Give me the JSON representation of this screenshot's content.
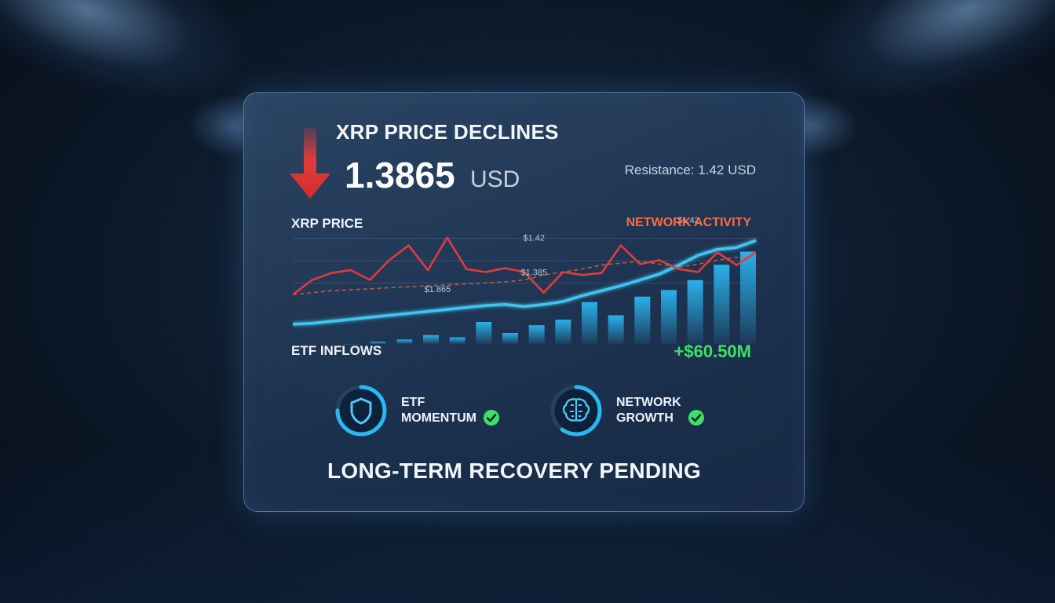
{
  "header": {
    "title": "XRP PRICE DECLINES",
    "price": "1.3865",
    "unit": "USD",
    "resistance": "Resistance: 1.42 USD"
  },
  "labels": {
    "xrp_price": "XRP PRICE",
    "network_activity": "NETWORK ACTIVITY",
    "etf_inflows": "ETF INFLOWS",
    "inflow_value": "+$60.50M"
  },
  "annotations": [
    {
      "text": "$1.42",
      "x": 12.5,
      "y": 1.42
    },
    {
      "text": "$1.385",
      "x": 12.5,
      "y": 1.385
    },
    {
      "text": "$1.865",
      "x": 7.5,
      "y": 1.368
    },
    {
      "text": "$1.42",
      "x": 20.5,
      "y": 1.438
    }
  ],
  "metrics": [
    {
      "line1": "ETF",
      "line2": "MOMENTUM",
      "icon": "shield-icon",
      "ring_fill": 0.75
    },
    {
      "line1": "NETWORK",
      "line2": "GROWTH",
      "icon": "brain-icon",
      "ring_fill": 0.6
    }
  ],
  "footer": "LONG-TERM RECOVERY PENDING",
  "colors": {
    "price_line": "#e23b3b",
    "network_line": "#3fc5f0",
    "bars": "#2ab0ea",
    "down_arrow": "#e23b3b",
    "positive": "#3de06a",
    "network_label": "#ff6b3d"
  },
  "chart_data": {
    "type": "line",
    "x": [
      0,
      1,
      2,
      3,
      4,
      5,
      6,
      7,
      8,
      9,
      10,
      11,
      12,
      13,
      14,
      15,
      16,
      17,
      18,
      19,
      20,
      21,
      22,
      23,
      24
    ],
    "ylim": [
      1.32,
      1.45
    ],
    "series": [
      {
        "name": "XRP PRICE",
        "values": [
          1.37,
          1.385,
          1.392,
          1.395,
          1.385,
          1.405,
          1.42,
          1.395,
          1.428,
          1.396,
          1.393,
          1.397,
          1.393,
          1.372,
          1.393,
          1.39,
          1.392,
          1.42,
          1.401,
          1.405,
          1.396,
          1.393,
          1.413,
          1.4,
          1.413
        ]
      },
      {
        "name": "NETWORK ACTIVITY",
        "values": [
          1.34,
          1.341,
          1.343,
          1.345,
          1.347,
          1.349,
          1.351,
          1.353,
          1.355,
          1.357,
          1.359,
          1.36,
          1.358,
          1.36,
          1.363,
          1.369,
          1.374,
          1.379,
          1.385,
          1.391,
          1.4,
          1.41,
          1.416,
          1.418,
          1.425
        ]
      },
      {
        "name": "",
        "style": "dashed",
        "values": [
          1.37,
          1.372,
          1.374,
          1.375,
          1.376,
          1.377,
          1.378,
          1.379,
          1.38,
          1.381,
          1.382,
          1.383,
          1.385,
          1.39,
          1.393,
          1.396,
          1.4,
          1.402,
          1.404,
          1.401,
          1.398,
          1.401,
          1.405,
          1.408,
          1.41
        ]
      }
    ],
    "bars": {
      "name": "ETF INFLOWS",
      "values": [
        0,
        0.02,
        0.04,
        0.08,
        0.06,
        0.2,
        0.1,
        0.17,
        0.22,
        0.38,
        0.26,
        0.43,
        0.49,
        0.58,
        0.72,
        0.84
      ]
    }
  }
}
